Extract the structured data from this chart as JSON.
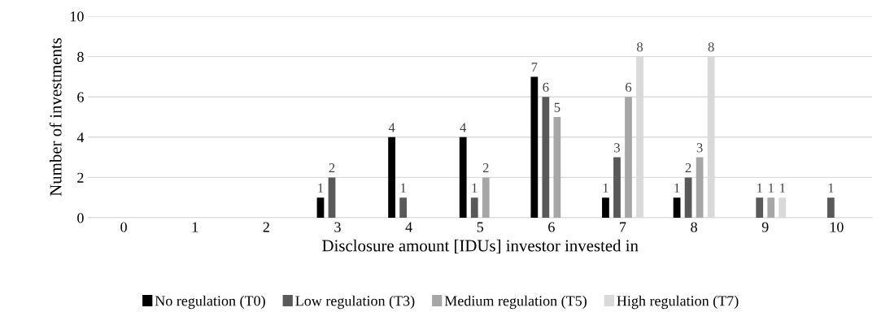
{
  "chart_data": {
    "type": "bar",
    "xlabel": "Disclosure amount [IDUs] investor invested in",
    "ylabel": "Number of investments",
    "categories": [
      "0",
      "1",
      "2",
      "3",
      "4",
      "5",
      "6",
      "7",
      "8",
      "9",
      "10"
    ],
    "series": [
      {
        "name": "No regulation (T0)",
        "color": "#000000",
        "values": [
          0,
          0,
          0,
          1,
          4,
          4,
          7,
          1,
          1,
          0,
          0
        ],
        "value_labels": [
          null,
          null,
          null,
          "1",
          "4",
          "4",
          "7",
          "1",
          "1",
          null,
          null
        ]
      },
      {
        "name": "Low regulation (T3)",
        "color": "#595959",
        "values": [
          0,
          0,
          0,
          2,
          1,
          1,
          6,
          3,
          2,
          1,
          1
        ],
        "value_labels": [
          null,
          null,
          null,
          "2",
          "1",
          "1",
          "6",
          "3",
          "2",
          "1",
          "1"
        ]
      },
      {
        "name": "Medium regulation (T5)",
        "color": "#a6a6a6",
        "values": [
          0,
          0,
          0,
          0,
          0,
          2,
          5,
          6,
          3,
          1,
          0
        ],
        "value_labels": [
          null,
          null,
          null,
          null,
          null,
          "2",
          "5",
          "6",
          "3",
          "1",
          null
        ]
      },
      {
        "name": "High regulation (T7)",
        "color": "#d9d9d9",
        "values": [
          0,
          0,
          0,
          0,
          0,
          0,
          0,
          8,
          8,
          1,
          0
        ],
        "value_labels": [
          null,
          null,
          null,
          null,
          null,
          null,
          null,
          "8",
          "8",
          "1",
          null
        ]
      }
    ],
    "ylim": [
      0,
      10
    ],
    "yticks": [
      0,
      2,
      4,
      6,
      8,
      10
    ],
    "grid": "y",
    "legend": "bottom"
  }
}
